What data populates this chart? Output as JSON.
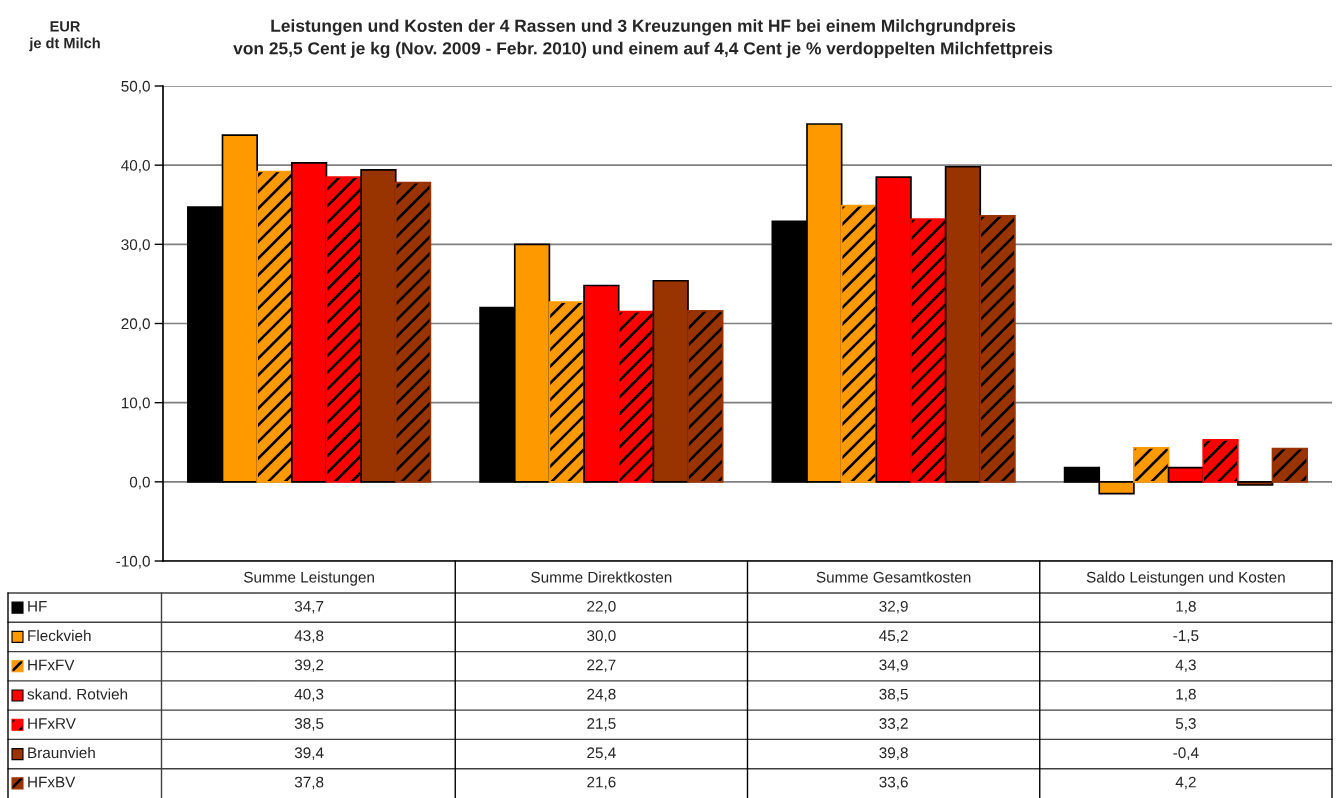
{
  "chart_data": {
    "type": "bar",
    "title": "Leistungen und Kosten der 4 Rassen und 3 Kreuzungen mit HF bei einem Milchgrundpreis\nvon 25,5 Cent je kg (Nov. 2009 - Febr. 2010) und einem auf 4,4 Cent je % verdoppelten Milchfettpreis",
    "ylabel": "EUR\nje dt Milch",
    "categories": [
      "Summe Leistungen",
      "Summe Direktkosten",
      "Summe Gesamtkosten",
      "Saldo Leistungen und Kosten"
    ],
    "series": [
      {
        "name": "HF",
        "color": "#000000",
        "values": [
          34.7,
          22.0,
          32.9,
          1.8
        ],
        "value_labels": [
          "34,7",
          "22,0",
          "32,9",
          "1,8"
        ]
      },
      {
        "name": "Fleckvieh",
        "color": "#ff9900",
        "values": [
          43.8,
          30.0,
          45.2,
          -1.5
        ],
        "value_labels": [
          "43,8",
          "30,0",
          "45,2",
          "-1,5"
        ]
      },
      {
        "name": "HFxFV",
        "color": "#ff9900",
        "values": [
          39.2,
          22.7,
          34.9,
          4.3
        ],
        "value_labels": [
          "39,2",
          "22,7",
          "34,9",
          "4,3"
        ]
      },
      {
        "name": "skand. Rotvieh",
        "color": "#ff0000",
        "values": [
          40.3,
          24.8,
          38.5,
          1.8
        ],
        "value_labels": [
          "40,3",
          "24,8",
          "38,5",
          "1,8"
        ]
      },
      {
        "name": "HFxRV",
        "color": "#ff0000",
        "values": [
          38.5,
          21.5,
          33.2,
          5.3
        ],
        "value_labels": [
          "38,5",
          "21,5",
          "33,2",
          "5,3"
        ]
      },
      {
        "name": "Braunvieh",
        "color": "#993300",
        "values": [
          39.4,
          25.4,
          39.8,
          -0.4
        ],
        "value_labels": [
          "39,4",
          "25,4",
          "39,8",
          "-0,4"
        ]
      },
      {
        "name": "HFxBV",
        "color": "#993300",
        "values": [
          37.8,
          21.6,
          33.6,
          4.2
        ],
        "value_labels": [
          "37,8",
          "21,6",
          "33,6",
          "4,2"
        ]
      }
    ],
    "ylim": [
      -10,
      50
    ],
    "yticks": [
      {
        "value": -10,
        "label": "-10,0"
      },
      {
        "value": 0,
        "label": "0,0"
      },
      {
        "value": 10,
        "label": "10,0"
      },
      {
        "value": 20,
        "label": "20,0"
      },
      {
        "value": 30,
        "label": "30,0"
      },
      {
        "value": 40,
        "label": "40,0"
      },
      {
        "value": 50,
        "label": "50,0"
      }
    ],
    "grid": "y",
    "legend": "bottom"
  }
}
